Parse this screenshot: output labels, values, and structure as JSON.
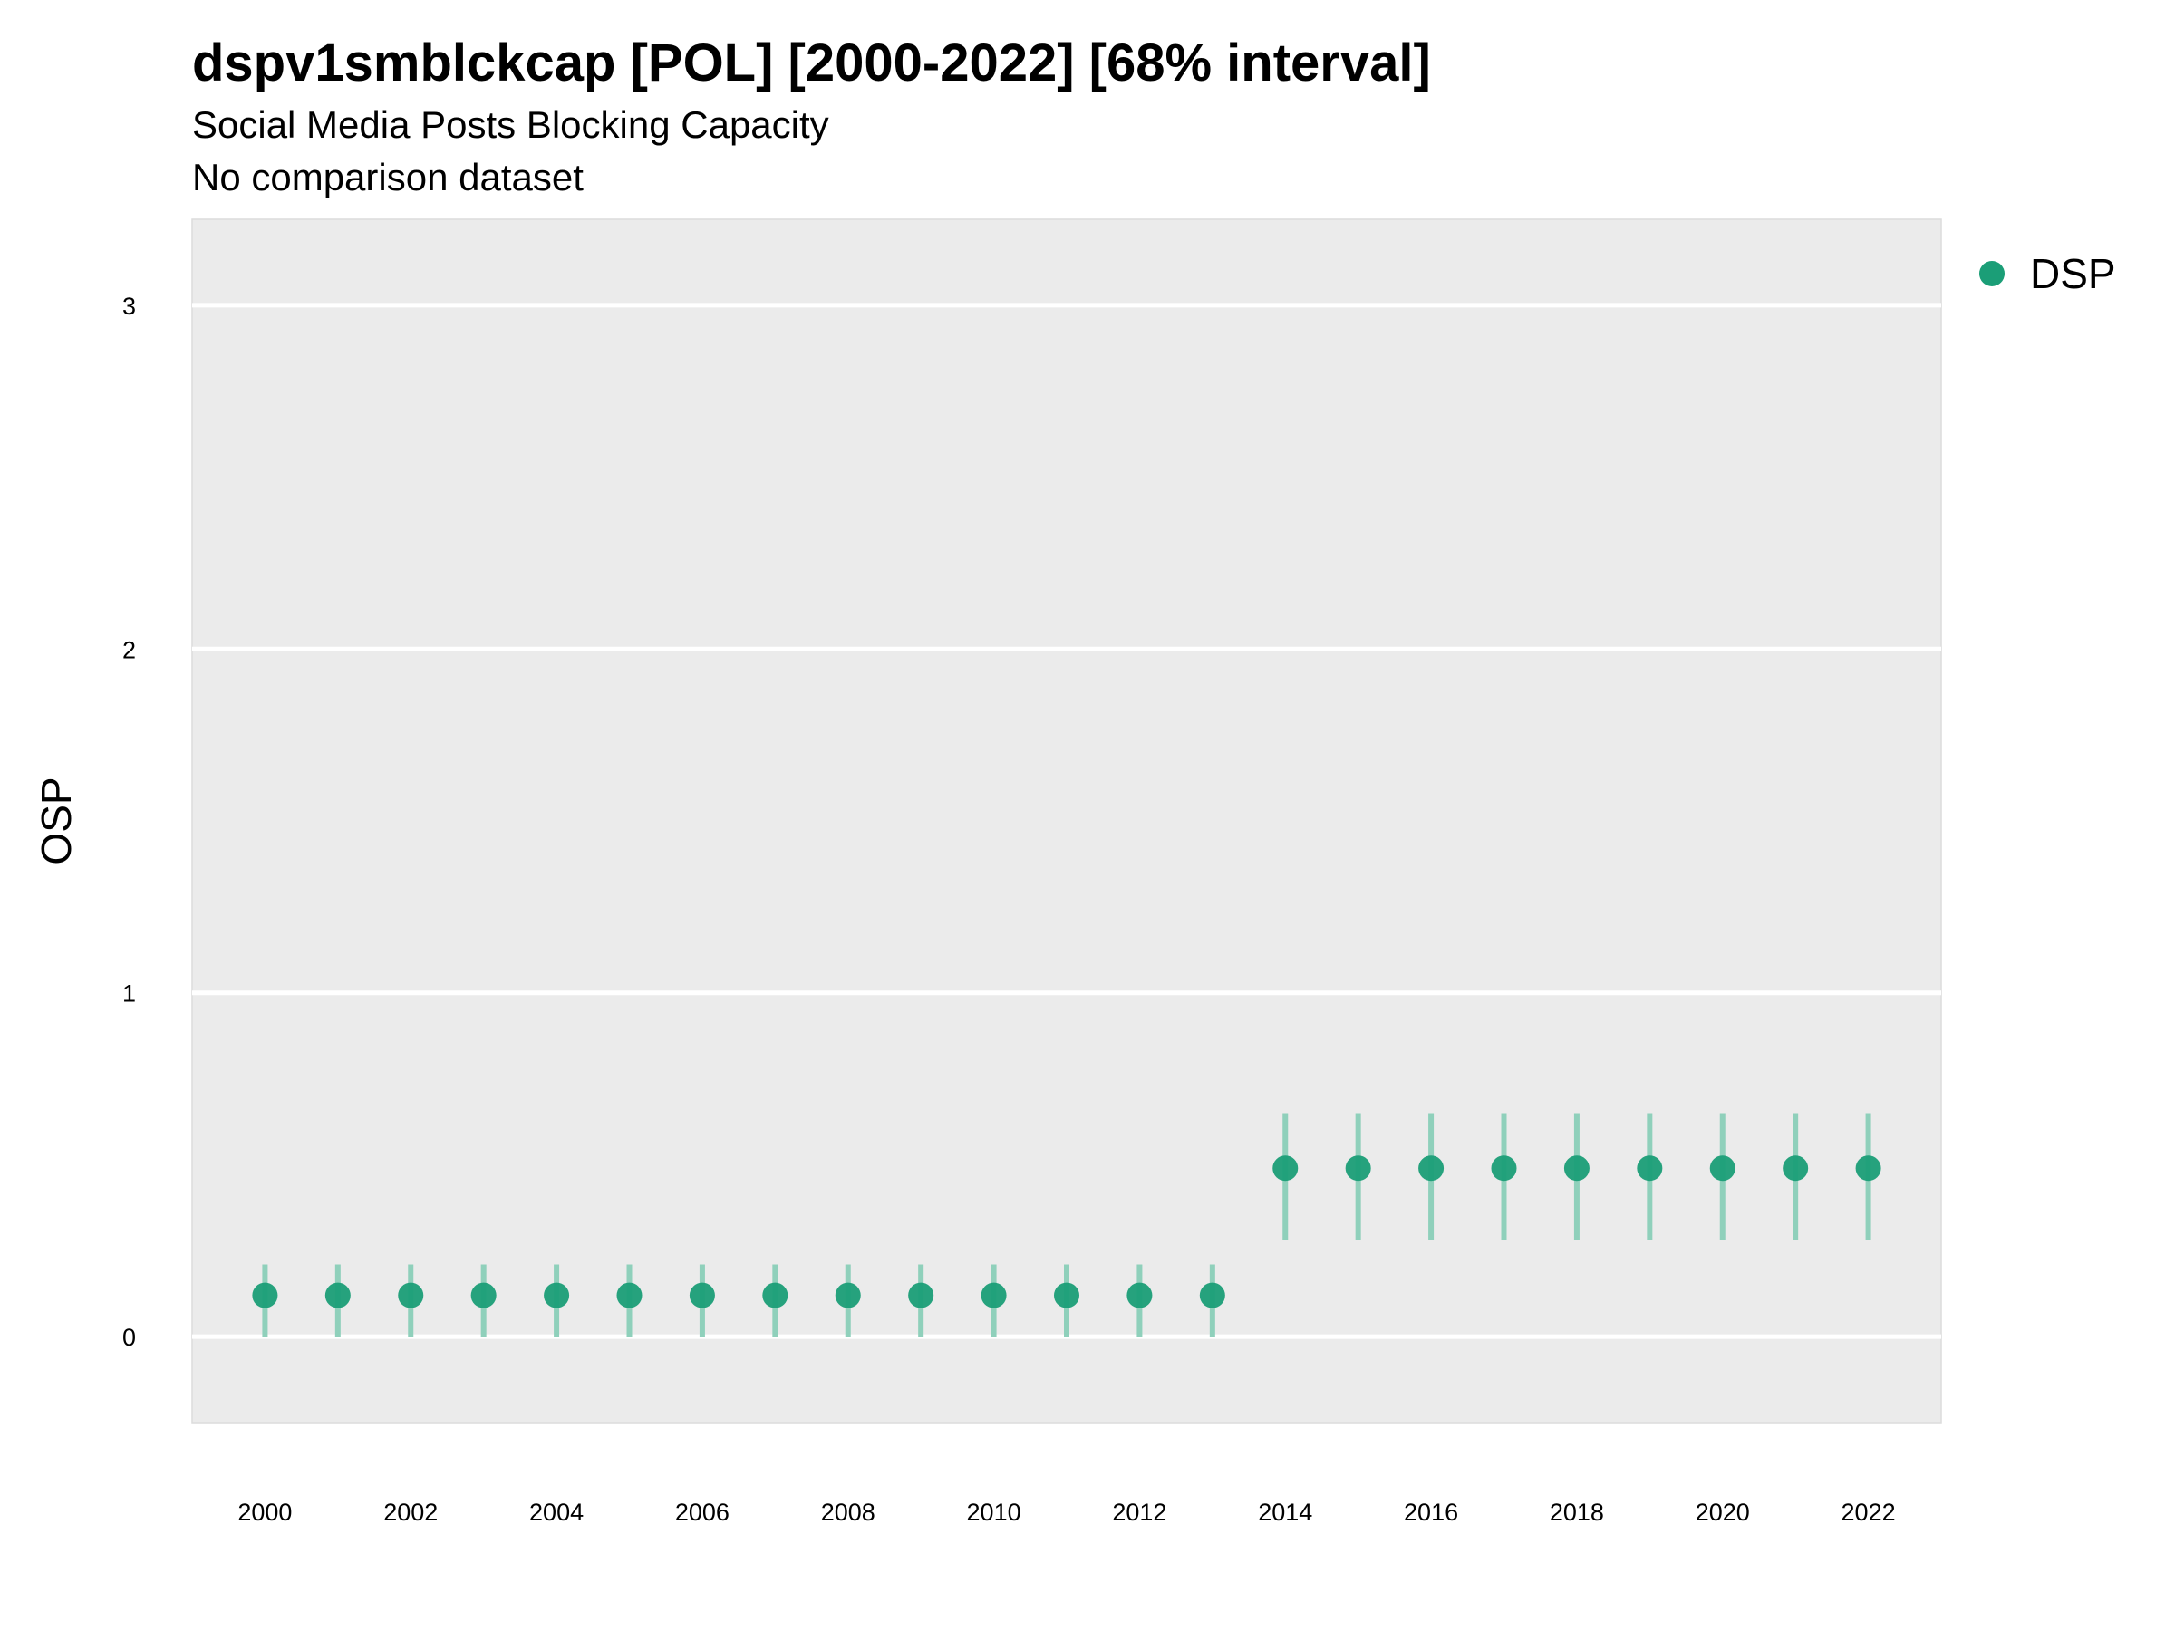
{
  "title": "dspv1smblckcap [POL] [2000-2022] [68% interval]",
  "subtitles": [
    "Social Media Posts Blocking Capacity",
    "No comparison dataset"
  ],
  "colors": {
    "point": "#1b9e77",
    "interval": "#8fd0bb",
    "panel": "#ebebeb",
    "grid": "#ffffff"
  },
  "chart_data": {
    "type": "scatter",
    "title": "dspv1smblckcap [POL] [2000-2022] [68% interval]",
    "subtitle": "Social Media Posts Blocking Capacity",
    "caption": "No comparison dataset",
    "xlabel": "",
    "ylabel": "OSP",
    "x_ticks": [
      "2000",
      "2002",
      "2004",
      "2006",
      "2008",
      "2010",
      "2012",
      "2014",
      "2016",
      "2018",
      "2020",
      "2022"
    ],
    "y_ticks": [
      "0",
      "1",
      "2",
      "3"
    ],
    "xlim": [
      1999,
      2023
    ],
    "ylim": [
      -0.25,
      3.25
    ],
    "grid": "horizontal major lines",
    "legend": "right",
    "series": [
      {
        "name": "DSP",
        "x": [
          2000,
          2001,
          2002,
          2003,
          2004,
          2005,
          2006,
          2007,
          2008,
          2009,
          2010,
          2011,
          2012,
          2013,
          2014,
          2015,
          2016,
          2017,
          2018,
          2019,
          2020,
          2021,
          2022
        ],
        "y": [
          0.12,
          0.12,
          0.12,
          0.12,
          0.12,
          0.12,
          0.12,
          0.12,
          0.12,
          0.12,
          0.12,
          0.12,
          0.12,
          0.12,
          0.49,
          0.49,
          0.49,
          0.49,
          0.49,
          0.49,
          0.49,
          0.49,
          0.49
        ],
        "lower": [
          0.0,
          0.0,
          0.0,
          0.0,
          0.0,
          0.0,
          0.0,
          0.0,
          0.0,
          0.0,
          0.0,
          0.0,
          0.0,
          0.0,
          0.28,
          0.28,
          0.28,
          0.28,
          0.28,
          0.28,
          0.28,
          0.28,
          0.28
        ],
        "upper": [
          0.21,
          0.21,
          0.21,
          0.21,
          0.21,
          0.21,
          0.21,
          0.21,
          0.21,
          0.21,
          0.21,
          0.21,
          0.21,
          0.21,
          0.65,
          0.65,
          0.65,
          0.65,
          0.65,
          0.65,
          0.65,
          0.65,
          0.65
        ]
      }
    ]
  }
}
